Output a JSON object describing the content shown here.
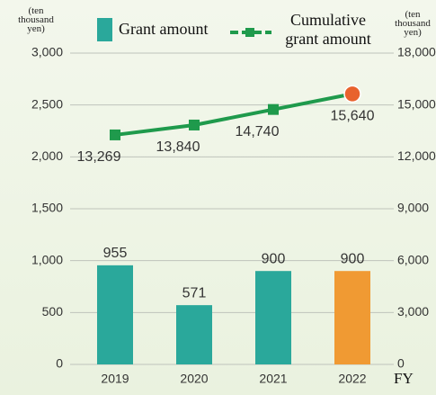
{
  "chart_data": {
    "type": "bar_line",
    "categories": [
      "2019",
      "2020",
      "2021",
      "2022"
    ],
    "series": [
      {
        "name": "Grant amount",
        "type": "bar",
        "color": "#2aa89b",
        "colors": [
          "#2aa89b",
          "#2aa89b",
          "#2aa89b",
          "#f09a33"
        ],
        "values": [
          955,
          571,
          900,
          900
        ]
      },
      {
        "name": "Cumulative grant amount",
        "type": "line",
        "axis": "y2",
        "color": "#1f9a4c",
        "last_point_color": "#e8622d",
        "values": [
          13269,
          13840,
          14740,
          15640
        ],
        "value_labels": [
          "13,269",
          "13,840",
          "14,740",
          "15,640"
        ]
      }
    ],
    "ylabel": "(ten thousand yen)",
    "y2label": "(ten thousand yen)",
    "xlabel": "FY",
    "ylim": [
      0,
      3000
    ],
    "yticks": [
      0,
      500,
      {
        "value": 1000,
        "label": "1,000"
      },
      {
        "value": 1500,
        "label": "1,500"
      },
      {
        "value": 2000,
        "label": "2,000"
      },
      {
        "value": 2500,
        "label": "2,500"
      },
      {
        "value": 3000,
        "label": "3,000"
      }
    ],
    "y2lim": [
      0,
      18000
    ],
    "y2ticks": [
      0,
      {
        "value": 3000,
        "label": "3,000"
      },
      {
        "value": 6000,
        "label": "6,000"
      },
      {
        "value": 9000,
        "label": "9,000"
      },
      {
        "value": 12000,
        "label": "12,000"
      },
      {
        "value": 15000,
        "label": "15,000"
      },
      {
        "value": 18000,
        "label": "18,000"
      }
    ],
    "grid": true
  }
}
